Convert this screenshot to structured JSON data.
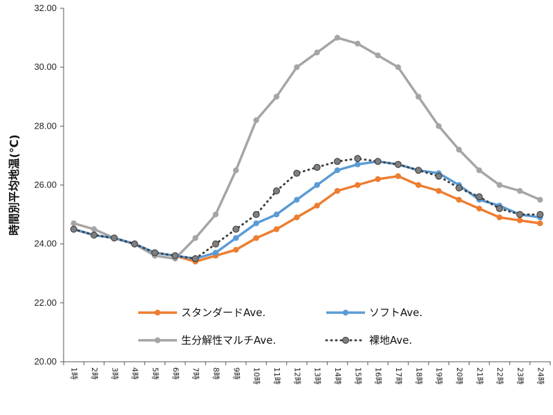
{
  "chart_data": {
    "type": "line",
    "title": "",
    "xlabel": "",
    "ylabel": "時間別平均地温(℃)",
    "ylim": [
      20,
      32
    ],
    "yticks": [
      "20.00",
      "22.00",
      "24.00",
      "26.00",
      "28.00",
      "30.00",
      "32.00"
    ],
    "grid": false,
    "legend_position": "bottom-inside",
    "categories": [
      "1時",
      "2時",
      "3時",
      "4時",
      "5時",
      "6時",
      "7時",
      "8時",
      "9時",
      "10時",
      "11時",
      "12時",
      "13時",
      "14時",
      "15時",
      "16時",
      "17時",
      "18時",
      "19時",
      "20時",
      "21時",
      "22時",
      "23時",
      "24時"
    ],
    "series": [
      {
        "name": "スタンダードAve.",
        "color": "#ED7D31",
        "style": "solid",
        "marker": "circle",
        "values": [
          24.5,
          24.3,
          24.2,
          24.0,
          23.7,
          23.6,
          23.4,
          23.6,
          23.8,
          24.2,
          24.5,
          24.9,
          25.3,
          25.8,
          26.0,
          26.2,
          26.3,
          26.0,
          25.8,
          25.5,
          25.2,
          24.9,
          24.8,
          24.7
        ]
      },
      {
        "name": "ソフトAve.",
        "color": "#5B9BD5",
        "style": "solid",
        "marker": "circle",
        "values": [
          24.5,
          24.3,
          24.2,
          24.0,
          23.7,
          23.6,
          23.5,
          23.7,
          24.2,
          24.7,
          25.0,
          25.5,
          26.0,
          26.5,
          26.7,
          26.8,
          26.7,
          26.5,
          26.4,
          26.0,
          25.5,
          25.3,
          25.0,
          24.9
        ]
      },
      {
        "name": "生分解性マルチAve.",
        "color": "#A5A5A5",
        "style": "solid",
        "marker": "circle",
        "values": [
          24.7,
          24.5,
          24.2,
          24.0,
          23.6,
          23.5,
          24.2,
          25.0,
          26.5,
          28.2,
          29.0,
          30.0,
          30.5,
          31.0,
          30.8,
          30.4,
          30.0,
          29.0,
          28.0,
          27.2,
          26.5,
          26.0,
          25.8,
          25.5
        ]
      },
      {
        "name": "裸地Ave.",
        "color": "#404040",
        "marker_color": "#7F7F7F",
        "style": "dotted",
        "marker": "circle",
        "values": [
          24.5,
          24.3,
          24.2,
          24.0,
          23.7,
          23.6,
          23.5,
          24.0,
          24.5,
          25.0,
          25.8,
          26.4,
          26.6,
          26.8,
          26.9,
          26.8,
          26.7,
          26.5,
          26.3,
          25.9,
          25.6,
          25.2,
          25.0,
          25.0
        ]
      }
    ]
  }
}
